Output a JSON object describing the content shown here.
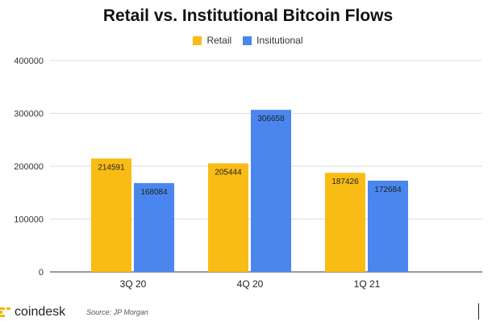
{
  "chart_data": {
    "type": "bar",
    "title": "Retail vs. Institutional Bitcoin Flows",
    "categories": [
      "3Q 20",
      "4Q 20",
      "1Q 21"
    ],
    "series": [
      {
        "name": "Retail",
        "color": "#F9BC15",
        "values": [
          214591,
          205444,
          187426
        ]
      },
      {
        "name": "Insitutional",
        "color": "#4A86EE",
        "values": [
          168084,
          306658,
          172684
        ]
      }
    ],
    "ylim": [
      0,
      400000
    ],
    "yticks": [
      0,
      100000,
      200000,
      300000,
      400000
    ],
    "xlabel": "",
    "ylabel": "",
    "grid": true,
    "legend_position": "top-center"
  },
  "footer": {
    "brand": "coindesk",
    "source": "Source: JP Morgan"
  }
}
